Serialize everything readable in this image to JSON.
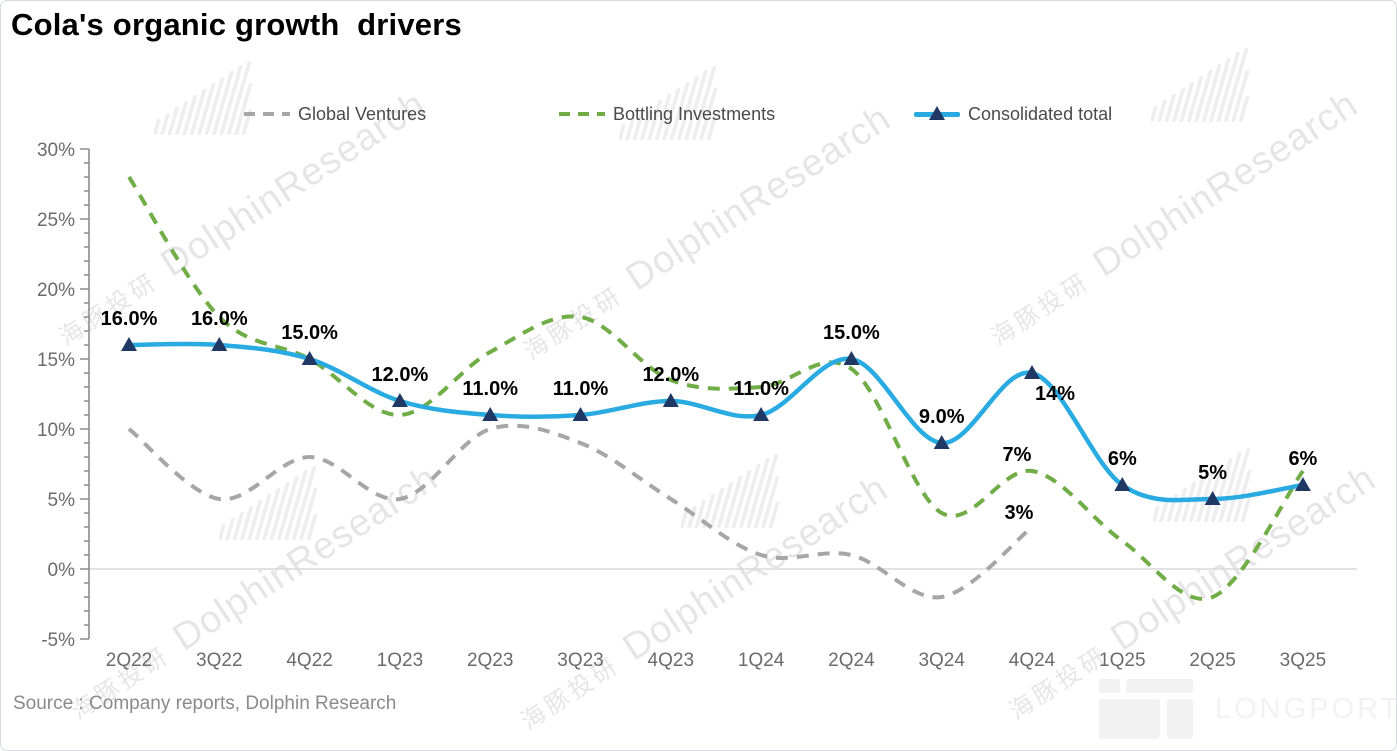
{
  "title": "Cola's organic growth  drivers",
  "source": {
    "text": "Source : Company reports, Dolphin Research"
  },
  "watermark": {
    "cn": "海豚投研",
    "en": "DolphinResearch"
  },
  "logo": {
    "text": "LONGPORT"
  },
  "chart_data": {
    "type": "line",
    "title": "Cola's organic growth  drivers",
    "categories": [
      "2Q22",
      "3Q22",
      "4Q22",
      "1Q23",
      "2Q23",
      "3Q23",
      "4Q23",
      "1Q24",
      "2Q24",
      "3Q24",
      "4Q24",
      "1Q25",
      "2Q25",
      "3Q25"
    ],
    "ylim": [
      -5,
      30
    ],
    "ytick_step": 5,
    "ytick_labels_top_down": [
      "30%",
      "25%",
      "20%",
      "15%",
      "10%",
      "5%",
      "0%",
      "-5%"
    ],
    "grid": "zero-line-only",
    "legend_position": "top",
    "series": [
      {
        "name": "Global Ventures",
        "color": "#A6A6A6",
        "line_style": "dashed",
        "values": [
          10,
          5,
          8,
          5,
          10,
          9,
          5,
          1,
          1,
          -2,
          3,
          null,
          null,
          null
        ],
        "point_labels": {
          "10": "3%"
        }
      },
      {
        "name": "Bottling Investments",
        "color": "#70AD47",
        "line_style": "dashed",
        "values": [
          28,
          18,
          15,
          11,
          15.5,
          18,
          13.5,
          13,
          14.3,
          4,
          7,
          2,
          -2,
          7
        ],
        "point_labels": {
          "10": "7%"
        }
      },
      {
        "name": "Consolidated total",
        "color": "#29ABE2",
        "line_style": "solid",
        "marker": "triangle",
        "marker_color": "#1F3864",
        "values": [
          16,
          16,
          15,
          12,
          11,
          11,
          12,
          11,
          15,
          9,
          14,
          6,
          5,
          6
        ],
        "point_labels": {
          "0": "16.0%",
          "1": "16.0%",
          "2": "15.0%",
          "3": "12.0%",
          "4": "11.0%",
          "5": "11.0%",
          "6": "12.0%",
          "7": "11.0%",
          "8": "15.0%",
          "9": "9.0%",
          "10": "14%",
          "11": "6%",
          "12": "5%",
          "13": "6%"
        }
      }
    ]
  }
}
